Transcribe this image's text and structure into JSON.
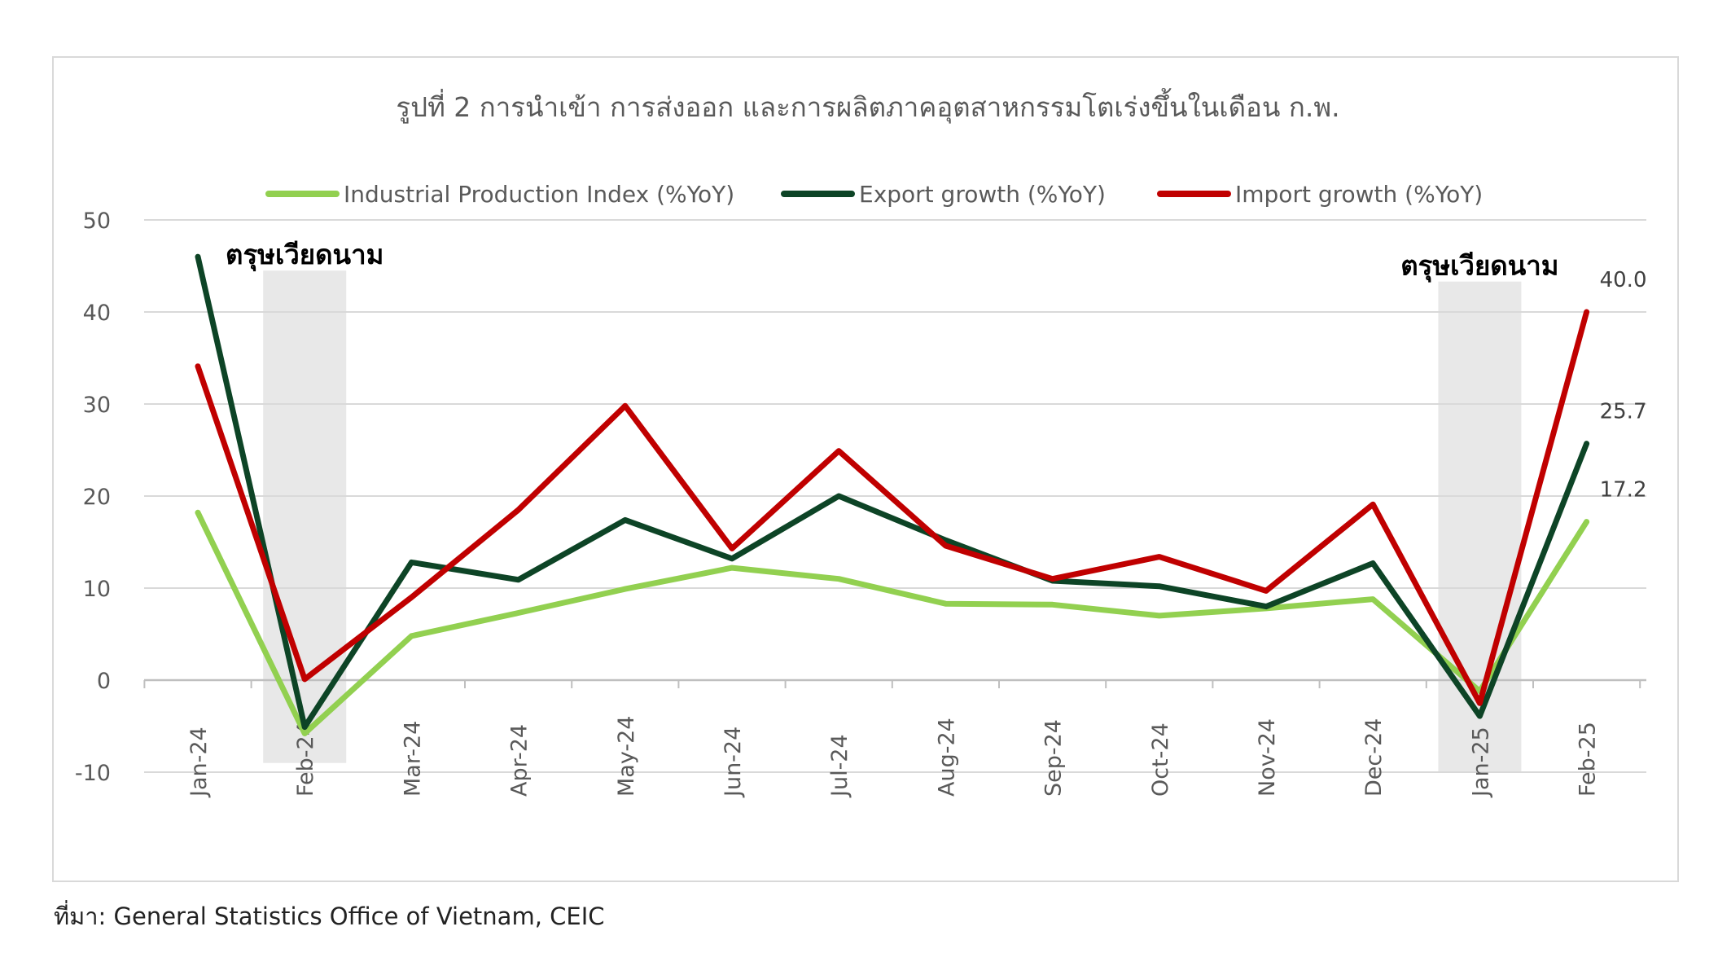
{
  "source": "ที่มา: General Statistics Office of Vietnam, CEIC",
  "colors": {
    "industrial": "#92d050",
    "export": "#0d4426",
    "import": "#c00000",
    "shade": "#e8e8e8",
    "grid": "#d9d9d9",
    "text": "#595959"
  },
  "chart_data": {
    "type": "line",
    "title": "รูปที่ 2 การนำเข้า การส่งออก และการผลิตภาคอุตสาหกรรมโตเร่งขึ้นในเดือน ก.พ.",
    "xlabel": "",
    "ylabel": "",
    "ylim": [
      -10,
      50
    ],
    "yticks": [
      -10,
      0,
      10,
      20,
      30,
      40,
      50
    ],
    "grid": true,
    "legend_position": "top",
    "categories": [
      "Jan-24",
      "Feb-24",
      "Mar-24",
      "Apr-24",
      "May-24",
      "Jun-24",
      "Jul-24",
      "Aug-24",
      "Sep-24",
      "Oct-24",
      "Nov-24",
      "Dec-24",
      "Jan-25",
      "Feb-25"
    ],
    "series": [
      {
        "name": "Industrial Production Index (%YoY)",
        "color_key": "industrial",
        "values": [
          18.2,
          -5.8,
          4.8,
          7.3,
          9.9,
          12.2,
          11.0,
          8.3,
          8.2,
          7.0,
          7.8,
          8.8,
          -1.2,
          17.2
        ]
      },
      {
        "name": "Export growth (%YoY)",
        "color_key": "export",
        "values": [
          46.0,
          -5.1,
          12.8,
          10.9,
          17.4,
          13.2,
          20.0,
          15.2,
          10.8,
          10.2,
          8.0,
          12.7,
          -3.9,
          25.7
        ]
      },
      {
        "name": "Import growth (%YoY)",
        "color_key": "import",
        "values": [
          34.1,
          0.1,
          9.0,
          18.5,
          29.8,
          14.3,
          24.9,
          14.6,
          11.0,
          13.4,
          9.7,
          19.1,
          -2.5,
          40.0
        ]
      }
    ],
    "data_labels": [
      {
        "series": 0,
        "index": 13,
        "text": "17.2"
      },
      {
        "series": 1,
        "index": 13,
        "text": "25.7"
      },
      {
        "series": 2,
        "index": 13,
        "text": "40.0"
      }
    ],
    "annotations": [
      {
        "text": "ตรุษเวียดนาม",
        "category_index": 1,
        "shade_from": -9,
        "shade_to": 44.5
      },
      {
        "text": "ตรุษเวียดนาม",
        "category_index": 12,
        "shade_from": -10,
        "shade_to": 43.3
      }
    ]
  }
}
